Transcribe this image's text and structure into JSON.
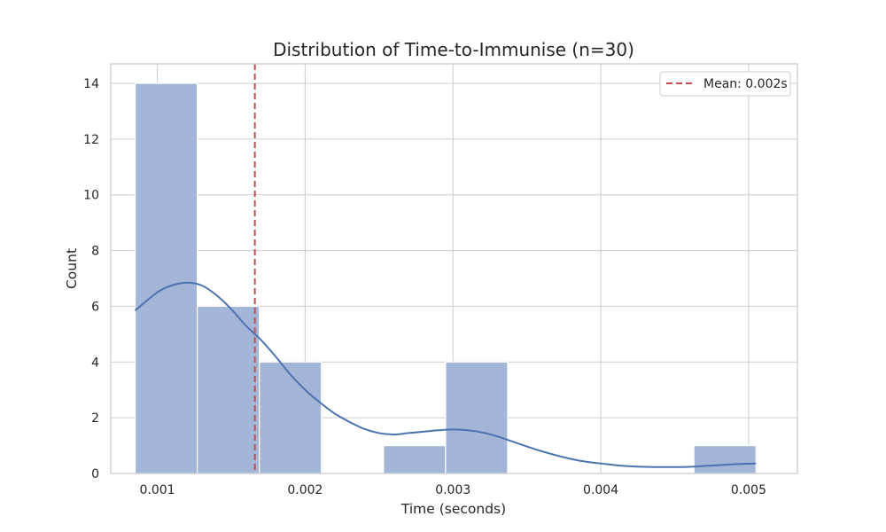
{
  "chart_data": {
    "type": "bar",
    "title": "Distribution of Time-to-Immunise (n=30)",
    "xlabel": "Time (seconds)",
    "ylabel": "Count",
    "xlim": [
      0.000685,
      0.00533
    ],
    "ylim": [
      0,
      14.7
    ],
    "x_ticks": [
      0.001,
      0.002,
      0.003,
      0.004,
      0.005
    ],
    "x_tick_labels": [
      "0.001",
      "0.002",
      "0.003",
      "0.004",
      "0.005"
    ],
    "y_ticks": [
      0,
      2,
      4,
      6,
      8,
      10,
      12,
      14
    ],
    "y_tick_labels": [
      "0",
      "2",
      "4",
      "6",
      "8",
      "10",
      "12",
      "14"
    ],
    "bins": {
      "edges": [
        0.00085,
        0.00127,
        0.00169,
        0.00211,
        0.00253,
        0.00295,
        0.00337,
        0.00379,
        0.00421,
        0.00463,
        0.00505
      ],
      "counts": [
        14,
        6,
        4,
        0,
        1,
        4,
        0,
        0,
        0,
        1
      ]
    },
    "kde": {
      "x": [
        0.00085,
        0.001,
        0.0011,
        0.0012,
        0.0013,
        0.0014,
        0.0015,
        0.0016,
        0.0017,
        0.0018,
        0.0019,
        0.002,
        0.0021,
        0.0022,
        0.0023,
        0.0024,
        0.0025,
        0.0026,
        0.0027,
        0.0028,
        0.0029,
        0.003,
        0.0031,
        0.0032,
        0.0033,
        0.0034,
        0.0035,
        0.0036,
        0.0037,
        0.0038,
        0.0039,
        0.004,
        0.0041,
        0.0042,
        0.0043,
        0.0044,
        0.0045,
        0.0046,
        0.0047,
        0.0048,
        0.0049,
        0.005,
        0.00505
      ],
      "y": [
        5.85,
        6.5,
        6.75,
        6.85,
        6.75,
        6.4,
        5.9,
        5.3,
        4.8,
        4.2,
        3.55,
        3.0,
        2.55,
        2.15,
        1.85,
        1.6,
        1.45,
        1.4,
        1.45,
        1.5,
        1.55,
        1.58,
        1.55,
        1.47,
        1.33,
        1.15,
        0.97,
        0.8,
        0.65,
        0.52,
        0.42,
        0.36,
        0.3,
        0.26,
        0.24,
        0.23,
        0.23,
        0.24,
        0.27,
        0.3,
        0.33,
        0.35,
        0.36
      ]
    },
    "mean_line": {
      "value": 0.00166,
      "label": "Mean: 0.002s"
    },
    "legend": {
      "placement": "top-right",
      "entries": [
        "Mean: 0.002s"
      ]
    },
    "grid": true,
    "colors": {
      "bar_fill": "#a4b6d8",
      "bar_edge": "#ffffff",
      "kde_line": "#4c72b0",
      "mean_line": "#c44e52",
      "grid": "#cccccc",
      "frame": "#cccccc",
      "text": "#262626"
    }
  }
}
